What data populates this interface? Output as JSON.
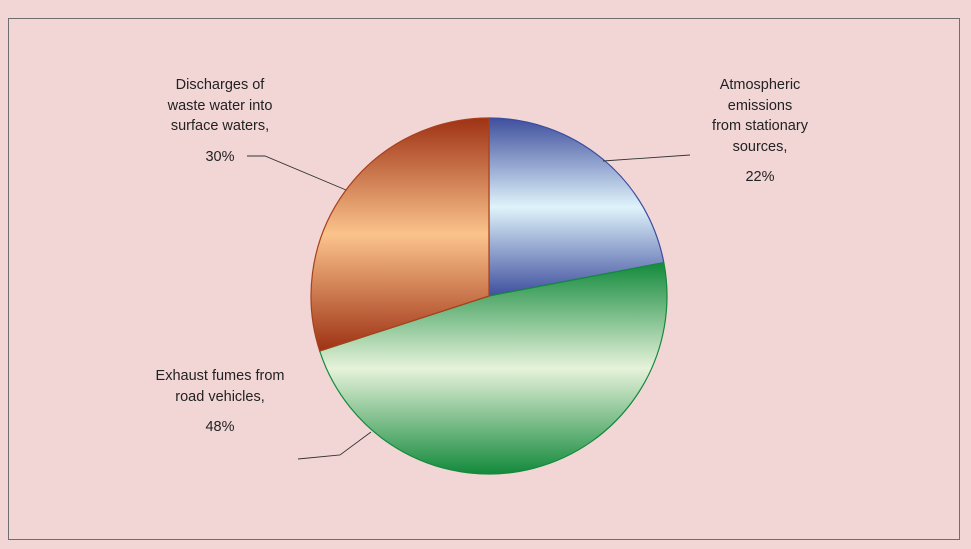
{
  "chart_data": {
    "type": "pie",
    "title": "",
    "categories": [
      "Atmospheric emissions from stationary sources,",
      "Exhaust fumes from road vehicles,",
      "Discharges of waste water into surface waters,"
    ],
    "values": [
      22,
      48,
      30
    ],
    "value_labels": [
      "22%",
      "48%",
      "30%"
    ],
    "start_angle_deg": 0,
    "direction": "clockwise",
    "legend": "none",
    "labels": [
      {
        "lines": [
          "Atmospheric",
          "emissions",
          "from stationary",
          "sources,"
        ],
        "percent": "22%"
      },
      {
        "lines": [
          "Exhaust fumes from",
          "road vehicles,"
        ],
        "percent": "48%"
      },
      {
        "lines": [
          "Discharges of",
          "waste water into",
          "surface waters,"
        ],
        "percent": "30%"
      }
    ],
    "colors": {
      "slice_1": {
        "dark": "#3f4f9e",
        "light": "#dff3fb",
        "edge": "#3a4ca0"
      },
      "slice_2": {
        "dark": "#138a3c",
        "light": "#e6f2da",
        "edge": "#138a3c"
      },
      "slice_3": {
        "dark": "#9e3214",
        "light": "#fbc38c",
        "edge": "#a8401c"
      }
    },
    "background": "#f2d6d6"
  }
}
